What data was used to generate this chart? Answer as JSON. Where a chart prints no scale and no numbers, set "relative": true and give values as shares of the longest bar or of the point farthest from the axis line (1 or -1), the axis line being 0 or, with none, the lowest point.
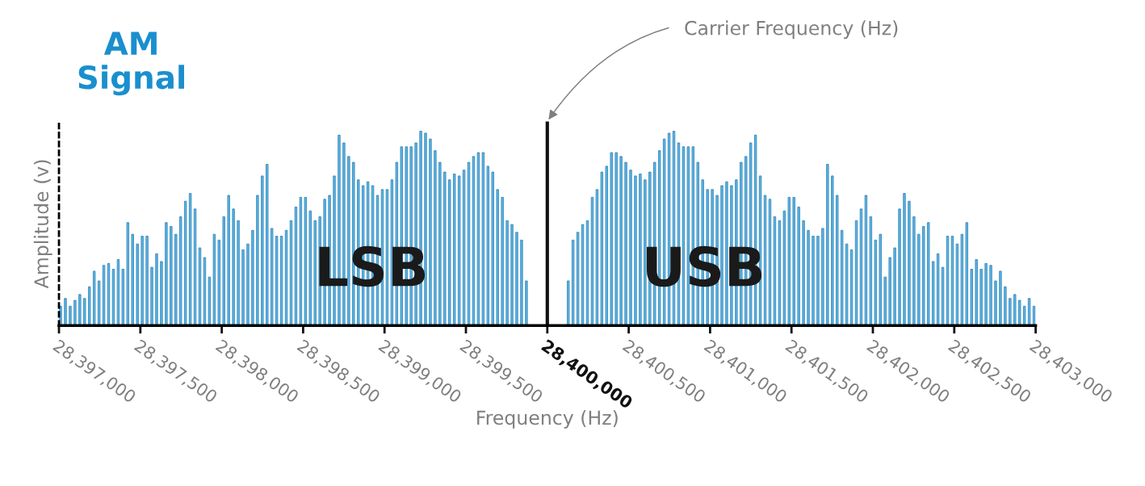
{
  "chart_data": {
    "type": "bar",
    "title": "AM\nSignal",
    "xlabel": "Frequency (Hz)",
    "ylabel": "Amplitude (v)",
    "relative": true,
    "color": "#5bb8e6",
    "grid": false,
    "annotations": [
      "LSB",
      "USB"
    ],
    "ref_lines": [
      {
        "axis": "x",
        "value": 28400000,
        "label": "Carrier Frequency (Hz)",
        "color": "#111111"
      }
    ],
    "xlim": [
      28397000,
      28403000
    ],
    "xticks": [
      {
        "value": 28397000,
        "label": "28,397,000"
      },
      {
        "value": 28397500,
        "label": "28,397,500"
      },
      {
        "value": 28398000,
        "label": "28,398,000"
      },
      {
        "value": 28398500,
        "label": "28,398,500"
      },
      {
        "value": 28399000,
        "label": "28,399,000"
      },
      {
        "value": 28399500,
        "label": "28,399,500"
      },
      {
        "value": 28400000,
        "label": "28,400,000"
      },
      {
        "value": 28400500,
        "label": "28,400,500"
      },
      {
        "value": 28401000,
        "label": "28,401,000"
      },
      {
        "value": 28401500,
        "label": "28,401,500"
      },
      {
        "value": 28402000,
        "label": "28,402,000"
      },
      {
        "value": 28402500,
        "label": "28,402,500"
      },
      {
        "value": 28403000,
        "label": "28,403,000"
      }
    ],
    "x": [
      28397010,
      28397039.5,
      28397069,
      28397098.5,
      28397128,
      28397157.5,
      28397187,
      28397216.5,
      28397246,
      28397275.5,
      28397305,
      28397334.5,
      28397364,
      28397393.5,
      28397423,
      28397452.5,
      28397482,
      28397511.5,
      28397541,
      28397570.5,
      28397600,
      28397629.5,
      28397659,
      28397688.5,
      28397718,
      28397747.5,
      28397777,
      28397806.5,
      28397836,
      28397865.5,
      28397895,
      28397924.5,
      28397954,
      28397983.5,
      28398013,
      28398042.5,
      28398072,
      28398101.5,
      28398131,
      28398160.5,
      28398190,
      28398219.5,
      28398249,
      28398278.5,
      28398308,
      28398337.5,
      28398367,
      28398396.5,
      28398426,
      28398455.5,
      28398485,
      28398514.5,
      28398544,
      28398573.5,
      28398603,
      28398632.5,
      28398662,
      28398691.5,
      28398721,
      28398750.5,
      28398780,
      28398809.5,
      28398839,
      28398868.5,
      28398898,
      28398927.5,
      28398957,
      28398986.5,
      28399016,
      28399045.5,
      28399075,
      28399104.5,
      28399134,
      28399163.5,
      28399193,
      28399222.5,
      28399252,
      28399281.5,
      28399311,
      28399340.5,
      28399370,
      28399399.5,
      28399429,
      28399458.5,
      28399488,
      28399517.5,
      28399547,
      28399576.5,
      28399606,
      28399635.5,
      28399665,
      28399694.5,
      28399724,
      28399753.5,
      28399783,
      28399812.5,
      28399842,
      28399871.5,
      28400128.5,
      28400158,
      28400187.5,
      28400217,
      28400246.5,
      28400276,
      28400305.5,
      28400335,
      28400364.5,
      28400394,
      28400423.5,
      28400453,
      28400482.5,
      28400512,
      28400541.5,
      28400571,
      28400600.5,
      28400630,
      28400659.5,
      28400689,
      28400718.5,
      28400748,
      28400777.5,
      28400807,
      28400836.5,
      28400866,
      28400895.5,
      28400925,
      28400954.5,
      28400984,
      28401013.5,
      28401043,
      28401072.5,
      28401102,
      28401131.5,
      28401161,
      28401190.5,
      28401220,
      28401249.5,
      28401279,
      28401308.5,
      28401338,
      28401367.5,
      28401397,
      28401426.5,
      28401456,
      28401485.5,
      28401515,
      28401544.5,
      28401574,
      28401603.5,
      28401633,
      28401662.5,
      28401692,
      28401721.5,
      28401751,
      28401780.5,
      28401810,
      28401839.5,
      28401869,
      28401898.5,
      28401928,
      28401957.5,
      28401987,
      28402016.5,
      28402046,
      28402075.5,
      28402105,
      28402134.5,
      28402164,
      28402193.5,
      28402223,
      28402252.5,
      28402282,
      28402311.5,
      28402341,
      28402370.5,
      28402400,
      28402429.5,
      28402459,
      28402488.5,
      28402518,
      28402547.5,
      28402577,
      28402606.5,
      28402636,
      28402665.5,
      28402695,
      28402724.5,
      28402754,
      28402783.5,
      28402813,
      28402842.5,
      28402872,
      28402901.5,
      28402931,
      28402960.5,
      28402990
    ],
    "values": [
      0.1,
      0.14,
      0.1,
      0.13,
      0.16,
      0.14,
      0.2,
      0.28,
      0.23,
      0.31,
      0.32,
      0.29,
      0.34,
      0.29,
      0.53,
      0.47,
      0.42,
      0.46,
      0.46,
      0.3,
      0.37,
      0.33,
      0.53,
      0.51,
      0.47,
      0.56,
      0.64,
      0.68,
      0.6,
      0.4,
      0.35,
      0.25,
      0.47,
      0.44,
      0.56,
      0.67,
      0.6,
      0.54,
      0.39,
      0.42,
      0.49,
      0.67,
      0.77,
      0.83,
      0.5,
      0.46,
      0.46,
      0.49,
      0.54,
      0.61,
      0.66,
      0.66,
      0.59,
      0.54,
      0.56,
      0.65,
      0.67,
      0.77,
      0.98,
      0.94,
      0.87,
      0.84,
      0.75,
      0.72,
      0.74,
      0.72,
      0.67,
      0.7,
      0.7,
      0.75,
      0.84,
      0.92,
      0.92,
      0.92,
      0.94,
      1.0,
      0.99,
      0.96,
      0.9,
      0.84,
      0.79,
      0.75,
      0.78,
      0.77,
      0.8,
      0.84,
      0.87,
      0.89,
      0.89,
      0.82,
      0.79,
      0.7,
      0.66,
      0.54,
      0.52,
      0.48,
      0.44,
      0.23,
      0.23,
      0.44,
      0.48,
      0.52,
      0.54,
      0.66,
      0.7,
      0.79,
      0.82,
      0.89,
      0.89,
      0.87,
      0.84,
      0.8,
      0.77,
      0.78,
      0.75,
      0.79,
      0.84,
      0.9,
      0.96,
      0.99,
      1.0,
      0.94,
      0.92,
      0.92,
      0.92,
      0.84,
      0.75,
      0.7,
      0.7,
      0.67,
      0.72,
      0.74,
      0.72,
      0.75,
      0.84,
      0.87,
      0.94,
      0.98,
      0.77,
      0.67,
      0.65,
      0.56,
      0.54,
      0.59,
      0.66,
      0.66,
      0.61,
      0.54,
      0.49,
      0.46,
      0.46,
      0.5,
      0.83,
      0.77,
      0.67,
      0.49,
      0.42,
      0.39,
      0.54,
      0.6,
      0.67,
      0.56,
      0.44,
      0.47,
      0.25,
      0.35,
      0.4,
      0.6,
      0.68,
      0.64,
      0.56,
      0.47,
      0.51,
      0.53,
      0.33,
      0.37,
      0.3,
      0.46,
      0.46,
      0.42,
      0.47,
      0.53,
      0.29,
      0.34,
      0.29,
      0.32,
      0.31,
      0.23,
      0.28,
      0.2,
      0.14,
      0.16,
      0.13,
      0.1,
      0.14,
      0.1
    ]
  }
}
